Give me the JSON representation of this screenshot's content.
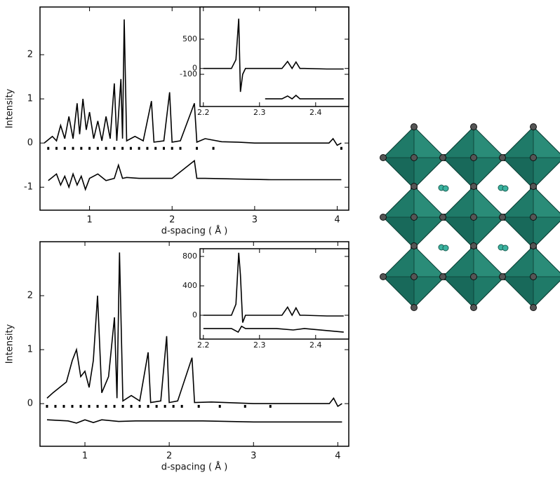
{
  "chart_data": [
    {
      "type": "line",
      "xlabel": "d-spacing ( Å )",
      "ylabel": "Intensity",
      "xlim": [
        0.4,
        4.14
      ],
      "ylim": [
        -1.52,
        3.08
      ],
      "xticks": [
        1,
        2,
        3,
        4
      ],
      "yticks": [
        -1,
        0,
        1,
        2
      ],
      "series": [
        {
          "style": "line",
          "color": "#000000",
          "x": [
            0.45,
            0.55,
            0.6,
            0.65,
            0.7,
            0.75,
            0.8,
            0.85,
            0.88,
            0.92,
            0.96,
            1.0,
            1.05,
            1.1,
            1.15,
            1.2,
            1.25,
            1.3,
            1.33,
            1.38,
            1.4,
            1.42,
            1.45,
            1.55,
            1.65,
            1.75,
            1.78,
            1.9,
            1.97,
            2.0,
            2.1,
            2.27,
            2.3,
            2.4,
            2.6,
            2.8,
            3.0,
            3.5,
            3.9,
            3.95,
            4.0,
            4.05
          ],
          "values": [
            0,
            0.15,
            0.05,
            0.4,
            0.1,
            0.6,
            0.1,
            0.9,
            0.2,
            1.0,
            0.3,
            0.7,
            0.1,
            0.5,
            0.05,
            0.6,
            0.1,
            1.35,
            0.05,
            1.45,
            0.1,
            2.8,
            0.05,
            0.15,
            0.05,
            0.95,
            0.02,
            0.05,
            1.15,
            0.02,
            0.05,
            0.9,
            0.02,
            0.1,
            0.03,
            0.02,
            0,
            0,
            0,
            0.1,
            -0.05,
            0
          ]
        },
        {
          "style": "points",
          "color": "#000000",
          "x": [
            0.5,
            0.6,
            0.7,
            0.8,
            0.9,
            1.0,
            1.1,
            1.2,
            1.3,
            1.4,
            1.5,
            1.6,
            1.7,
            1.8,
            1.9,
            2.0,
            2.1,
            2.3,
            2.5,
            4.05
          ],
          "values": [
            -0.12,
            -0.12,
            -0.12,
            -0.12,
            -0.12,
            -0.12,
            -0.12,
            -0.12,
            -0.12,
            -0.12,
            -0.12,
            -0.12,
            -0.12,
            -0.12,
            -0.12,
            -0.12,
            -0.12,
            -0.12,
            -0.12,
            -0.12
          ]
        },
        {
          "style": "line",
          "color": "#000000",
          "x": [
            0.5,
            0.6,
            0.65,
            0.7,
            0.75,
            0.8,
            0.85,
            0.9,
            0.95,
            1.0,
            1.1,
            1.2,
            1.3,
            1.35,
            1.4,
            1.45,
            1.6,
            2.0,
            2.27,
            2.3,
            2.4,
            3.2,
            3.6,
            4.05
          ],
          "values": [
            -0.85,
            -0.7,
            -0.95,
            -0.75,
            -1.0,
            -0.7,
            -0.95,
            -0.75,
            -1.05,
            -0.8,
            -0.7,
            -0.85,
            -0.8,
            -0.5,
            -0.8,
            -0.78,
            -0.8,
            -0.8,
            -0.4,
            -0.8,
            -0.8,
            -0.83,
            -0.83,
            -0.83
          ]
        }
      ]
    },
    {
      "type": "line",
      "xlim": [
        2.194,
        2.459
      ],
      "ylim": [
        -650,
        1050
      ],
      "xticks": [
        2.2,
        2.3,
        2.4
      ],
      "yticks": [
        -100,
        0,
        500
      ],
      "series": [
        {
          "style": "line",
          "color": "#000000",
          "x": [
            2.2,
            2.25,
            2.258,
            2.263,
            2.266,
            2.27,
            2.275,
            2.29,
            2.34,
            2.35,
            2.358,
            2.365,
            2.372,
            2.38,
            2.42,
            2.45
          ],
          "values": [
            0,
            0,
            150,
            850,
            -400,
            -100,
            0,
            0,
            0,
            120,
            0,
            110,
            0,
            0,
            -10,
            -10
          ]
        },
        {
          "style": "line",
          "color": "#000000",
          "x": [
            2.31,
            2.34,
            2.35,
            2.358,
            2.365,
            2.372,
            2.38,
            2.45
          ],
          "values": [
            -520,
            -520,
            -470,
            -520,
            -460,
            -520,
            -520,
            -520
          ]
        }
      ]
    },
    {
      "type": "line",
      "xlabel": "d-spacing ( Å )",
      "ylabel": "Intensity",
      "xlim": [
        0.467,
        4.13
      ],
      "ylim": [
        -0.79,
        3.0
      ],
      "xticks": [
        1,
        2,
        3,
        4
      ],
      "yticks": [
        0,
        1,
        2
      ],
      "series": [
        {
          "style": "line",
          "color": "#000000",
          "x": [
            0.55,
            0.62,
            0.7,
            0.78,
            0.85,
            0.9,
            0.95,
            1.0,
            1.05,
            1.1,
            1.15,
            1.2,
            1.28,
            1.35,
            1.38,
            1.41,
            1.45,
            1.55,
            1.65,
            1.75,
            1.78,
            1.9,
            1.97,
            2.0,
            2.1,
            2.27,
            2.3,
            2.5,
            3.0,
            3.5,
            3.9,
            3.95,
            4.0,
            4.05
          ],
          "values": [
            0.1,
            0.2,
            0.3,
            0.4,
            0.8,
            1.0,
            0.5,
            0.6,
            0.3,
            0.8,
            2.0,
            0.2,
            0.5,
            1.6,
            0.1,
            2.8,
            0.05,
            0.15,
            0.05,
            0.95,
            0.02,
            0.05,
            1.25,
            0.02,
            0.05,
            0.85,
            0.02,
            0.03,
            0,
            0,
            0,
            0.1,
            -0.05,
            0
          ]
        },
        {
          "style": "points",
          "color": "#000000",
          "x": [
            0.55,
            0.65,
            0.75,
            0.85,
            0.95,
            1.05,
            1.15,
            1.25,
            1.35,
            1.45,
            1.55,
            1.65,
            1.75,
            1.85,
            1.95,
            2.05,
            2.15,
            2.35,
            2.6,
            2.9,
            3.2
          ],
          "values": [
            -0.05,
            -0.05,
            -0.05,
            -0.05,
            -0.05,
            -0.05,
            -0.05,
            -0.05,
            -0.05,
            -0.05,
            -0.05,
            -0.05,
            -0.05,
            -0.05,
            -0.05,
            -0.05,
            -0.05,
            -0.05,
            -0.05,
            -0.05,
            -0.05
          ]
        },
        {
          "style": "line",
          "color": "#000000",
          "x": [
            0.55,
            0.8,
            0.9,
            1.0,
            1.1,
            1.2,
            1.4,
            1.6,
            2.1,
            2.15,
            2.4,
            3.0,
            3.5,
            4.05
          ],
          "values": [
            -0.3,
            -0.32,
            -0.36,
            -0.3,
            -0.35,
            -0.3,
            -0.33,
            -0.32,
            -0.32,
            -0.32,
            -0.32,
            -0.34,
            -0.34,
            -0.34
          ]
        }
      ]
    },
    {
      "type": "line",
      "xlim": [
        2.194,
        2.459
      ],
      "ylim": [
        -324,
        905
      ],
      "xticks": [
        2.2,
        2.3,
        2.4
      ],
      "yticks": [
        0,
        400,
        800
      ],
      "series": [
        {
          "style": "line",
          "color": "#000000",
          "x": [
            2.2,
            2.25,
            2.258,
            2.263,
            2.266,
            2.27,
            2.275,
            2.29,
            2.34,
            2.35,
            2.358,
            2.365,
            2.372,
            2.38,
            2.42,
            2.45
          ],
          "values": [
            0,
            0,
            150,
            850,
            550,
            -100,
            0,
            0,
            0,
            110,
            0,
            100,
            0,
            0,
            -10,
            -10
          ]
        },
        {
          "style": "line",
          "color": "#000000",
          "x": [
            2.2,
            2.25,
            2.262,
            2.268,
            2.275,
            2.33,
            2.36,
            2.38,
            2.45
          ],
          "values": [
            -180,
            -180,
            -230,
            -150,
            -180,
            -180,
            -200,
            -180,
            -230
          ]
        }
      ]
    }
  ]
}
